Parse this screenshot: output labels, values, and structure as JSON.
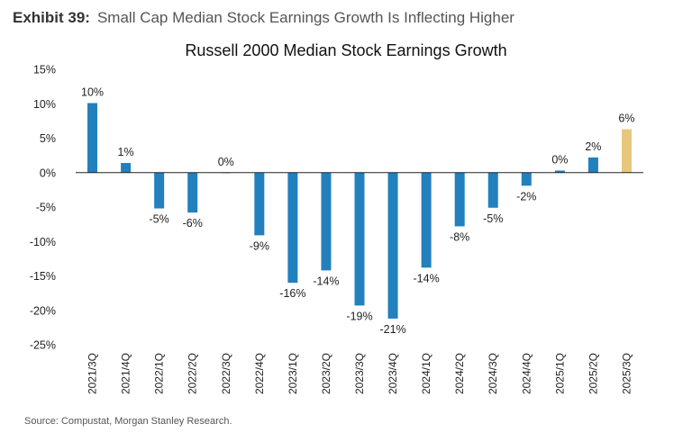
{
  "exhibit": {
    "label": "Exhibit 39:",
    "title": "Small Cap Median Stock Earnings Growth Is Inflecting Higher"
  },
  "source": "Source: Compustat, Morgan Stanley Research.",
  "chart_data": {
    "type": "bar",
    "title": "Russell 2000 Median Stock Earnings Growth",
    "xlabel": "",
    "ylabel": "",
    "ylim": [
      -25,
      15
    ],
    "yticks": [
      15,
      10,
      5,
      0,
      -5,
      -10,
      -15,
      -20,
      -25
    ],
    "ytick_labels": [
      "15%",
      "10%",
      "5%",
      "0%",
      "-5%",
      "-10%",
      "-15%",
      "-20%",
      "-25%"
    ],
    "grid": false,
    "categories": [
      "2021/3Q",
      "2021/4Q",
      "2022/1Q",
      "2022/2Q",
      "2022/3Q",
      "2022/4Q",
      "2023/1Q",
      "2023/2Q",
      "2023/3Q",
      "2023/4Q",
      "2024/1Q",
      "2024/2Q",
      "2024/3Q",
      "2024/4Q",
      "2025/1Q",
      "2025/2Q",
      "2025/3Q"
    ],
    "values": [
      10.1,
      1.4,
      -5.2,
      -5.8,
      0.0,
      -9.1,
      -16.0,
      -14.2,
      -19.3,
      -21.2,
      -13.8,
      -7.8,
      -5.1,
      -1.9,
      0.3,
      2.2,
      6.3
    ],
    "data_labels": [
      "10%",
      "1%",
      "-5%",
      "-6%",
      "0%",
      "-9%",
      "-16%",
      "-14%",
      "-19%",
      "-21%",
      "-14%",
      "-8%",
      "-5%",
      "-2%",
      "0%",
      "2%",
      "6%"
    ],
    "colors": {
      "default": "#2280bd",
      "highlight": "#e8c77c",
      "axis": "#222222",
      "text": "#222222"
    },
    "highlight_categories": [
      "2025/3Q"
    ]
  }
}
